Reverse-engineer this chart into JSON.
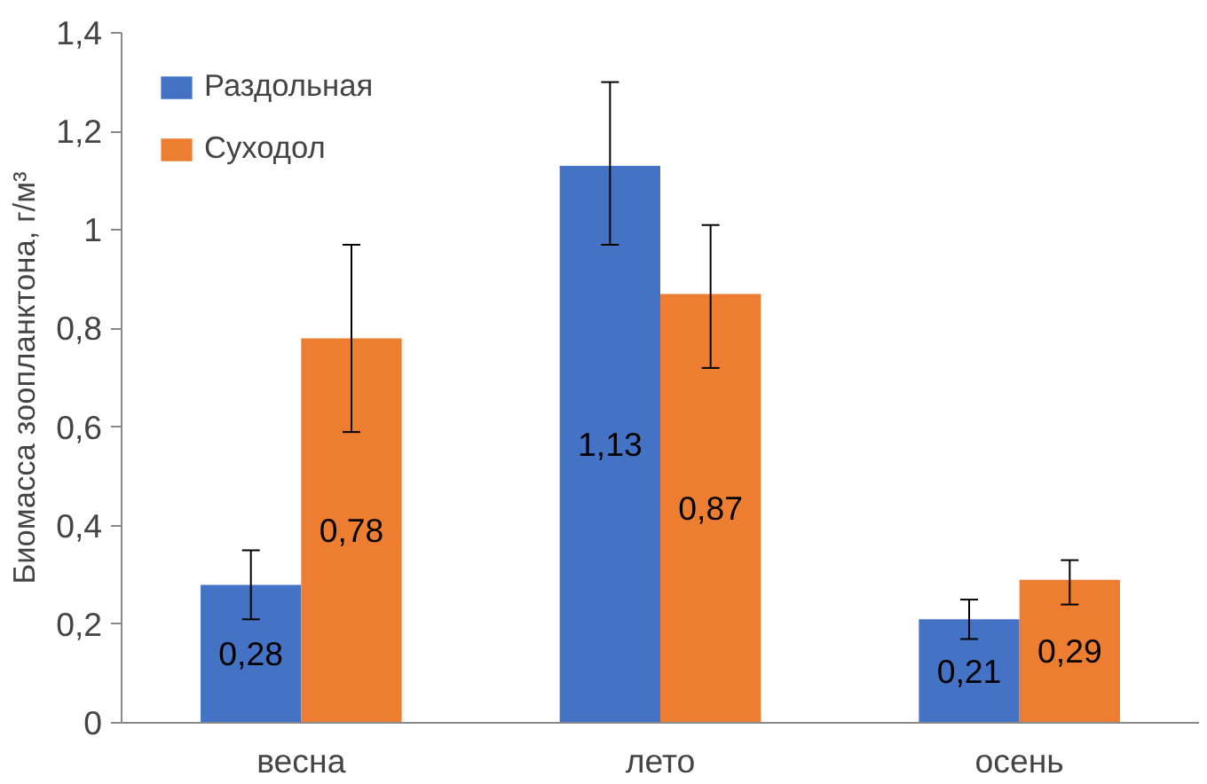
{
  "chart_data": {
    "type": "bar",
    "ylabel": "Биомасса зоопланктона, г/м³",
    "categories": [
      "весна",
      "лето",
      "осень"
    ],
    "series": [
      {
        "name": "Раздольная",
        "color": "#4472c4",
        "values": [
          0.28,
          1.13,
          0.21
        ],
        "value_labels": [
          "0,28",
          "1,13",
          "0,21"
        ],
        "errors": [
          [
            0.21,
            0.35
          ],
          [
            0.97,
            1.3
          ],
          [
            0.17,
            0.25
          ]
        ]
      },
      {
        "name": "Суходол",
        "color": "#ed7d31",
        "values": [
          0.78,
          0.87,
          0.29
        ],
        "value_labels": [
          "0,78",
          "0,87",
          "0,29"
        ],
        "errors": [
          [
            0.59,
            0.97
          ],
          [
            0.72,
            1.01
          ],
          [
            0.24,
            0.33
          ]
        ]
      }
    ],
    "ylim": [
      0,
      1.4
    ],
    "yticks": [
      0,
      {
        "value": 0.2,
        "label": "0,2"
      },
      {
        "value": 0.4,
        "label": "0,4"
      },
      {
        "value": 0.6,
        "label": "0,6"
      },
      {
        "value": 0.8,
        "label": "0,8"
      },
      1,
      {
        "value": 1.2,
        "label": "1,2"
      },
      {
        "value": 1.4,
        "label": "1,4"
      }
    ],
    "grid": false,
    "legend": "top left"
  }
}
